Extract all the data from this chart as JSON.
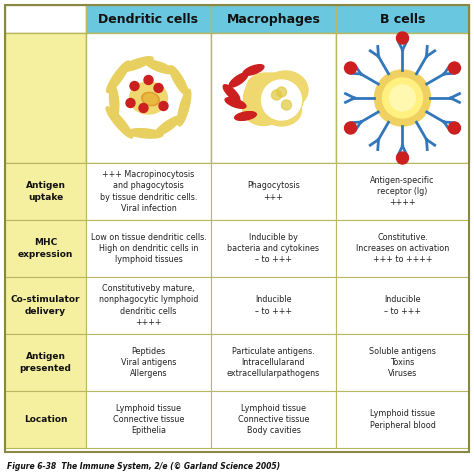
{
  "title": "Figure 6-38  The Immune System, 2/e (© Garland Science 2005)",
  "col_headers": [
    "Dendritic cells",
    "Macrophages",
    "B cells"
  ],
  "row_headers": [
    "Antigen\nuptake",
    "MHC\nexpression",
    "Co-stimulator\ndelivery",
    "Antigen\npresented",
    "Location"
  ],
  "cell_data": [
    [
      "+++ Macropinocytosis\nand phagocytosis\nby tissue dendritic cells.\nViral infection",
      "Phagocytosis\n+++",
      "Antigen-specific\nreceptor (Ig)\n++++"
    ],
    [
      "Low on tissue dendritic cells.\nHigh on dendritic cells in\nlymphoid tissues",
      "Inducible by\nbacteria and cytokines\n– to +++",
      "Constitutive.\nIncreases on activation\n+++ to ++++"
    ],
    [
      "Constitutiveby mature,\nnonphagocytic lymphoid\ndendritic cells\n++++",
      "Inducible\n– to +++",
      "Inducible\n– to +++"
    ],
    [
      "Peptides\nViral antigens\nAllergens",
      "Particulate antigens.\nIntracellularand\nextracellularpathogens",
      "Soluble antigens\nToxins\nViruses"
    ],
    [
      "Lymphoid tissue\nConnective tissue\nEpithelia",
      "Lymphoid tissue\nConnective tissue\nBody cavities",
      "Lymphoid tissue\nPeripheral blood"
    ]
  ],
  "header_bg": "#69c8e0",
  "row_header_bg": "#f5f0a0",
  "cell_bg": "#ffffff",
  "border_color": "#b8b860",
  "text_color": "#222222",
  "fig_bg": "#ffffff"
}
